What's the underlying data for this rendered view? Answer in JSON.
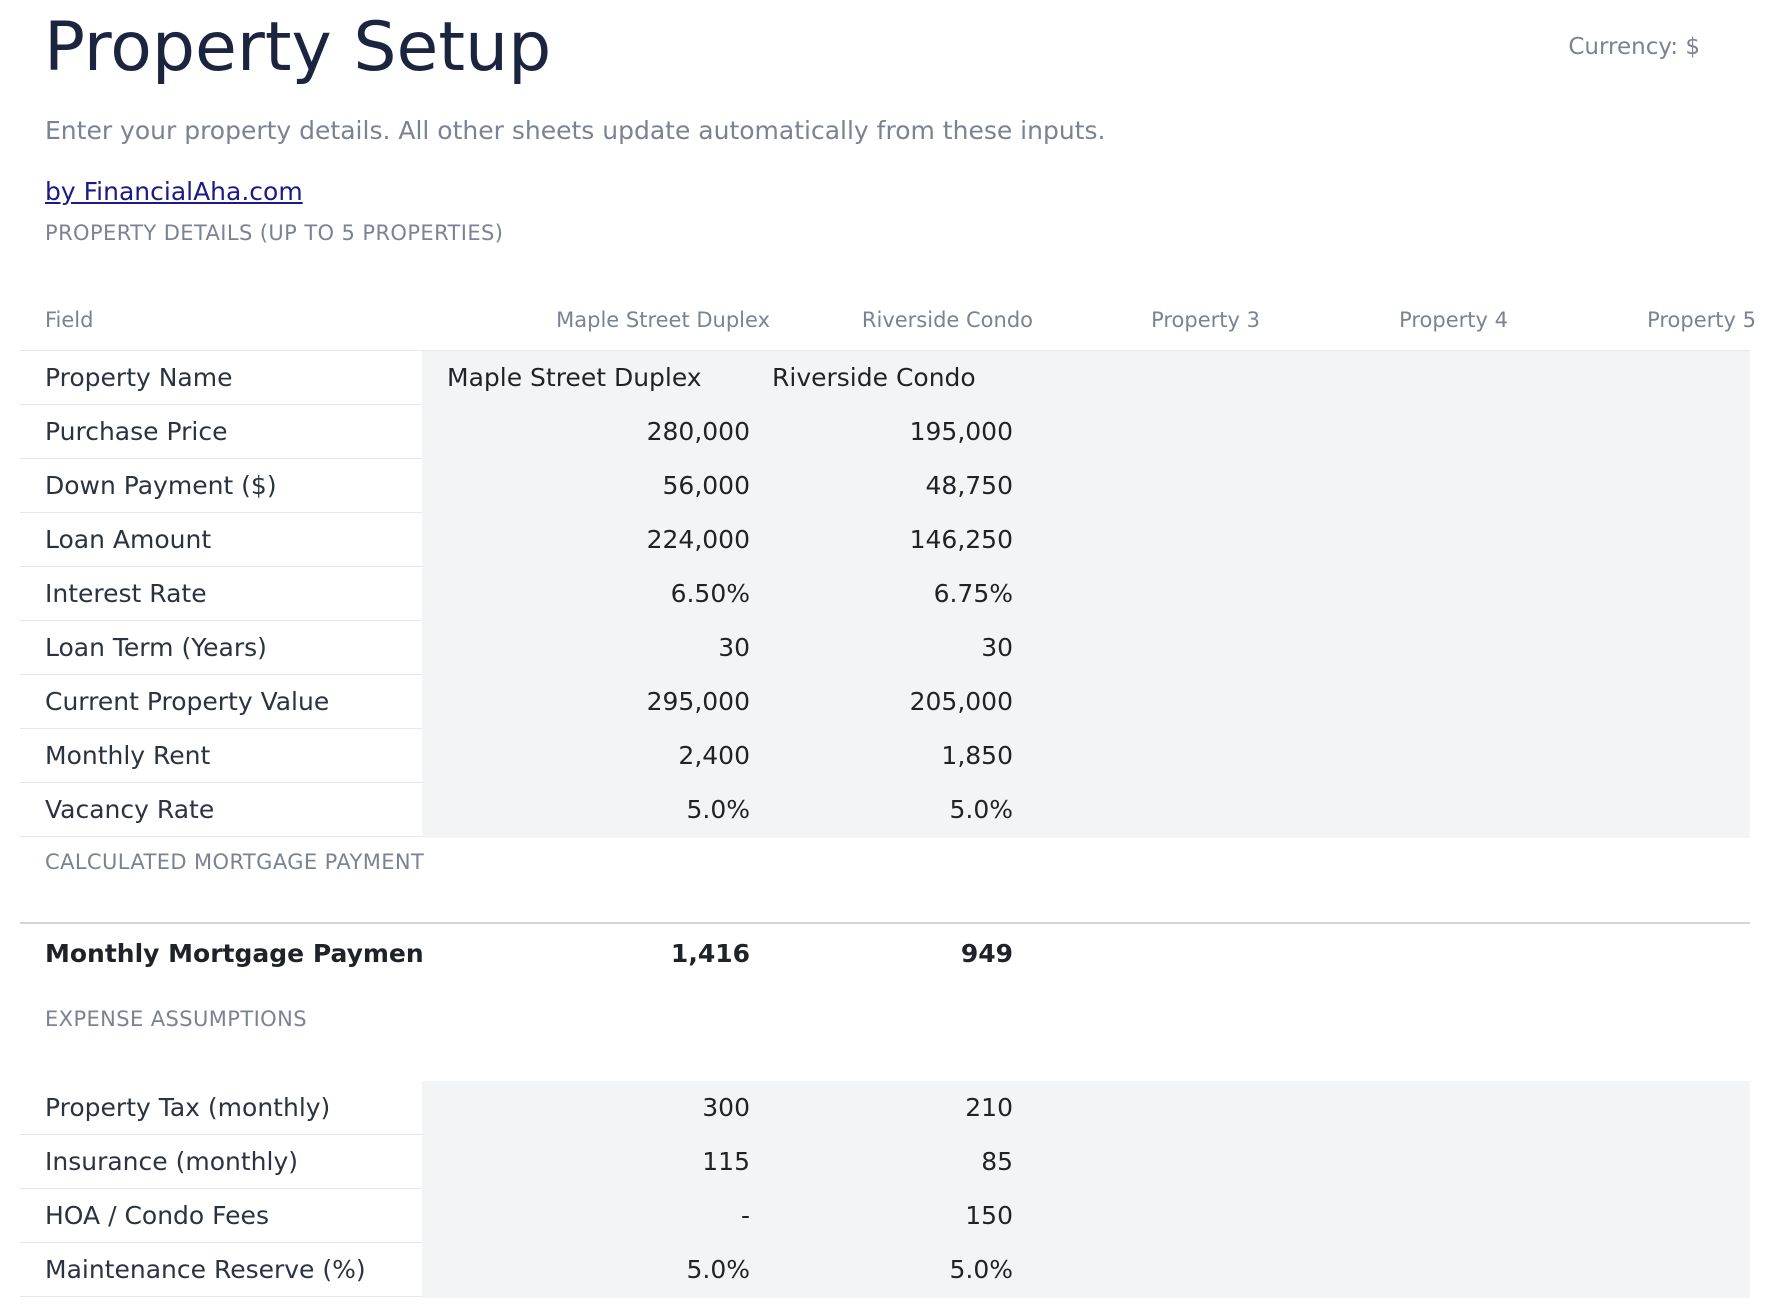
{
  "page": {
    "title": "Property Setup",
    "currency": "Currency: $",
    "subtitle": "Enter your property details. All other sheets update automatically from these inputs.",
    "byline": "by FinancialAha.com"
  },
  "sections": {
    "details": "PROPERTY DETAILS (UP TO 5 PROPERTIES)",
    "mortgage": "CALCULATED MORTGAGE PAYMENT",
    "expense": "EXPENSE ASSUMPTIONS"
  },
  "columns": [
    "Field",
    "Maple Street Duplex",
    "Riverside Condo",
    "Property 3",
    "Property 4",
    "Property 5"
  ],
  "details_rows": [
    {
      "label": "Property Name",
      "p1": "Maple Street Duplex",
      "p2": "Riverside Condo"
    },
    {
      "label": "Purchase Price",
      "p1": "280,000",
      "p2": "195,000"
    },
    {
      "label": "Down Payment ($)",
      "p1": "56,000",
      "p2": "48,750"
    },
    {
      "label": "Loan Amount",
      "p1": "224,000",
      "p2": "146,250"
    },
    {
      "label": "Interest Rate",
      "p1": "6.50%",
      "p2": "6.75%"
    },
    {
      "label": "Loan Term (Years)",
      "p1": "30",
      "p2": "30"
    },
    {
      "label": "Current Property Value",
      "p1": "295,000",
      "p2": "205,000"
    },
    {
      "label": "Monthly Rent",
      "p1": "2,400",
      "p2": "1,850"
    },
    {
      "label": "Vacancy Rate",
      "p1": "5.0%",
      "p2": "5.0%"
    }
  ],
  "mortgage": {
    "label": "Monthly Mortgage Payment",
    "p1": "1,416",
    "p2": "949"
  },
  "expense_rows": [
    {
      "label": "Property Tax (monthly)",
      "p1": "300",
      "p2": "210"
    },
    {
      "label": "Insurance (monthly)",
      "p1": "115",
      "p2": "85"
    },
    {
      "label": "HOA / Condo Fees",
      "p1": "-",
      "p2": "150"
    },
    {
      "label": "Maintenance Reserve (%)",
      "p1": "5.0%",
      "p2": "5.0%"
    }
  ]
}
